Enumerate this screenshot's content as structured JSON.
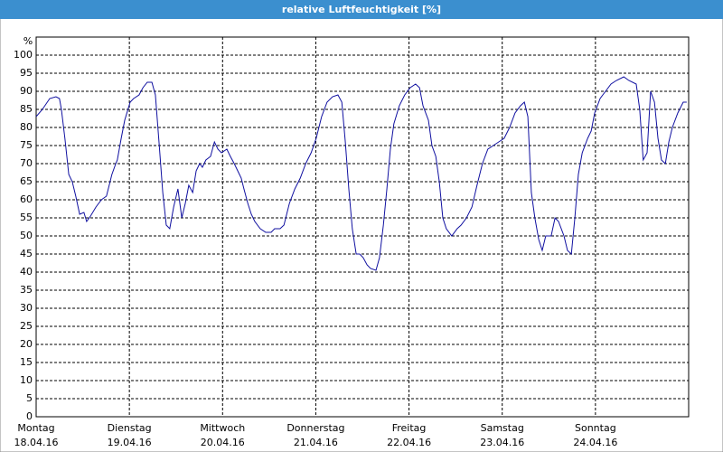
{
  "chart_data": {
    "type": "line",
    "title": "relative Luftfeuchtigkeit [%]",
    "y_label": "%",
    "xlim": [
      0,
      168
    ],
    "ylim": [
      0,
      105
    ],
    "xticks": [
      {
        "value": 0,
        "label": "Montag"
      },
      {
        "value": 24,
        "label": "Dienstag"
      },
      {
        "value": 48,
        "label": "Mittwoch"
      },
      {
        "value": 72,
        "label": "Donnerstag"
      },
      {
        "value": 96,
        "label": "Freitag"
      },
      {
        "value": 120,
        "label": "Samstag"
      },
      {
        "value": 144,
        "label": "Sonntag"
      }
    ],
    "xtick_dates": [
      "18.04.16",
      "19.04.16",
      "20.04.16",
      "21.04.16",
      "22.04.16",
      "23.04.16",
      "24.04.16"
    ],
    "yticks": [
      0,
      5,
      10,
      15,
      20,
      25,
      30,
      35,
      40,
      45,
      50,
      55,
      60,
      65,
      70,
      75,
      80,
      85,
      90,
      95,
      100
    ],
    "grid": true,
    "series": [
      {
        "color": "#1010a0",
        "x": [
          0,
          1.6,
          3.5,
          5.1,
          6.0,
          6.5,
          7.4,
          8.4,
          9.3,
          10.2,
          11.2,
          12.3,
          13.0,
          14.0,
          15.4,
          16.8,
          18.1,
          19.5,
          20.5,
          20.9,
          21.9,
          22.8,
          24.2,
          25.1,
          26.5,
          27.5,
          28.6,
          29.8,
          30.7,
          31.7,
          32.6,
          33.5,
          34.4,
          35.4,
          36.5,
          37.5,
          38.4,
          39.3,
          40.3,
          41.2,
          42.1,
          42.8,
          43.7,
          44.9,
          45.9,
          46.8,
          47.7,
          49.1,
          50.0,
          51.0,
          51.9,
          52.8,
          53.5,
          54.5,
          55.4,
          56.3,
          57.7,
          59.1,
          60.5,
          61.4,
          62.8,
          63.8,
          65.2,
          66.6,
          68.0,
          69.4,
          70.8,
          72.1,
          73.5,
          74.9,
          76.3,
          77.7,
          78.7,
          79.6,
          80.5,
          81.4,
          82.4,
          83.3,
          84.2,
          85.2,
          86.1,
          87.5,
          88.4,
          89.4,
          90.3,
          91.2,
          92.1,
          93.5,
          94.9,
          96.3,
          97.7,
          98.7,
          99.6,
          101.0,
          101.9,
          102.9,
          103.8,
          104.7,
          105.6,
          107.0,
          108.4,
          109.4,
          110.8,
          112.2,
          113.5,
          114.9,
          116.3,
          117.7,
          119.1,
          120.5,
          121.9,
          123.3,
          124.7,
          125.7,
          126.6,
          127.5,
          128.4,
          129.4,
          130.3,
          131.2,
          132.6,
          133.6,
          134.5,
          135.9,
          136.8,
          137.8,
          138.7,
          139.6,
          140.6,
          142.0,
          142.9,
          143.8,
          145.2,
          146.6,
          148.0,
          149.4,
          151.3,
          152.6,
          154.5,
          155.4,
          156.3,
          157.3,
          158.2,
          159.2,
          160.1,
          161.0,
          162.0,
          162.9,
          163.8,
          165.2,
          166.6,
          167.5
        ],
        "values": [
          83,
          85,
          88,
          88.5,
          88,
          85,
          77,
          67,
          65,
          61,
          56,
          56.5,
          54,
          55.5,
          58,
          60,
          61,
          67,
          70,
          71,
          77,
          82,
          87,
          88,
          89,
          91,
          92.5,
          92.5,
          89,
          75,
          62,
          53,
          52,
          58,
          63,
          55,
          59,
          64,
          62,
          68,
          70,
          69,
          71,
          72,
          76,
          74,
          73,
          74,
          72,
          70,
          68,
          66,
          63,
          59,
          56,
          54,
          52,
          51,
          51,
          52,
          52,
          53,
          59,
          63,
          66,
          70,
          73,
          77,
          83,
          87,
          88.5,
          89,
          87,
          76,
          63,
          52,
          45,
          45,
          44,
          42,
          41,
          40.5,
          44,
          53,
          63,
          74,
          81,
          86,
          89,
          91,
          92,
          91,
          86,
          82,
          75,
          72,
          65,
          55,
          52,
          50,
          52,
          53,
          55,
          58,
          64,
          70,
          74,
          75,
          76,
          77,
          80,
          84,
          86,
          87,
          83,
          62,
          55,
          49,
          46,
          50,
          50,
          55,
          54,
          50,
          46,
          45,
          55,
          67,
          73,
          77,
          79,
          84,
          88,
          90,
          92,
          93,
          94,
          93,
          92,
          85,
          71,
          73,
          90,
          87,
          77,
          71,
          70,
          76,
          80,
          84,
          87,
          87
        ]
      }
    ]
  }
}
